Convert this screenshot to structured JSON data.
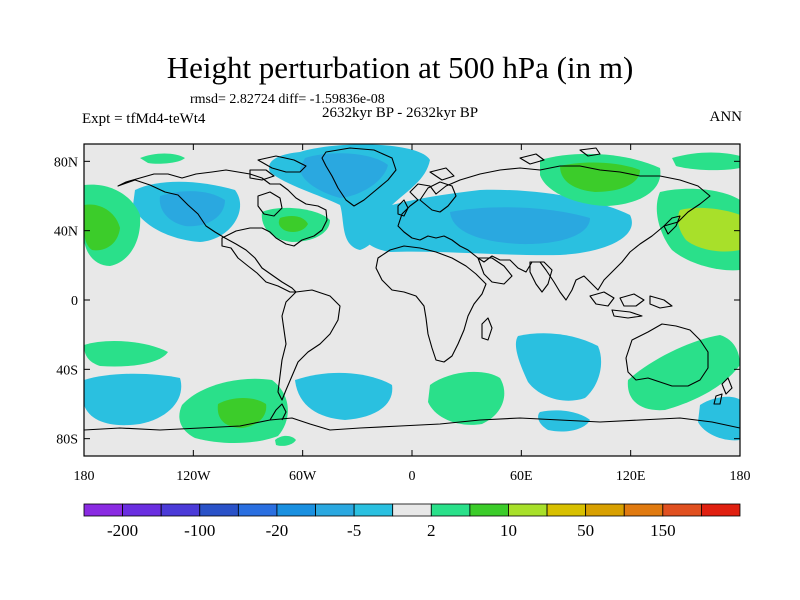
{
  "title": "Height perturbation at 500 hPa (in m)",
  "stats": "rmsd= 2.82724 diff= -1.59836e-08",
  "period": "2632kyr BP - 2632kyr BP",
  "experiment": "Expt = tfMd4-teWt4",
  "season": "ANN",
  "map": {
    "lon_range": [
      -180,
      180
    ],
    "lat_range": [
      -90,
      90
    ],
    "lat_ticks": [
      {
        "value": 80,
        "label": "80N"
      },
      {
        "value": 40,
        "label": "40N"
      },
      {
        "value": 0,
        "label": "0"
      },
      {
        "value": -40,
        "label": "40S"
      },
      {
        "value": -80,
        "label": "80S"
      }
    ],
    "lon_ticks": [
      {
        "value": -180,
        "label": "180"
      },
      {
        "value": -120,
        "label": "120W"
      },
      {
        "value": -60,
        "label": "60W"
      },
      {
        "value": 0,
        "label": "0"
      },
      {
        "value": 60,
        "label": "60E"
      },
      {
        "value": 120,
        "label": "120E"
      },
      {
        "value": 180,
        "label": "180"
      }
    ],
    "background_color": "#e8e8e8"
  },
  "colorbar": {
    "colors": [
      "#8a2be2",
      "#6a2ee0",
      "#4b3bd8",
      "#2a52c8",
      "#2a6fe0",
      "#1a90e0",
      "#2aa8e0",
      "#2ac0e0",
      "#e8e8e8",
      "#2ae08a",
      "#3ccc2a",
      "#a8e02a",
      "#d8c000",
      "#d8a000",
      "#e07a10",
      "#e05020",
      "#e02010"
    ],
    "labels": [
      "-200",
      "-100",
      "-20",
      "-5",
      "2",
      "10",
      "50",
      "150"
    ]
  },
  "field_colors": {
    "neg_light": "#2ac0e0",
    "neg_medium": "#2aa8e0",
    "pos_light": "#2ae08a",
    "pos_medium": "#3ccc2a",
    "pos_strong": "#a8e02a"
  }
}
